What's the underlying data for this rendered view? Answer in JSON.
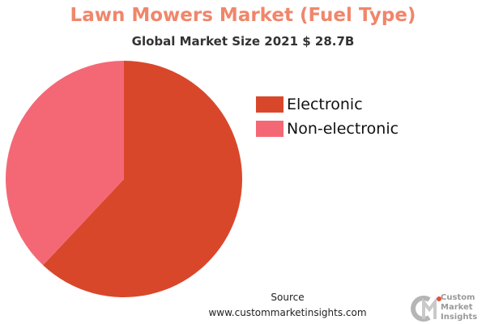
{
  "chart_data": {
    "type": "pie",
    "title": "Lawn Mowers Market (Fuel Type)",
    "subtitle": "Global Market Size 2021 $ 28.7B",
    "slices": [
      {
        "name": "Electronic",
        "value": 62,
        "color": "#d9472b"
      },
      {
        "name": "Non-electronic",
        "value": 38,
        "color": "#f46876"
      }
    ],
    "legend_position": "right"
  },
  "source": {
    "label": "Source",
    "url": "www.custommarketinsights.com"
  },
  "logo": {
    "mark": "CM",
    "lines": [
      "Custom",
      "Market",
      "Insights"
    ]
  }
}
